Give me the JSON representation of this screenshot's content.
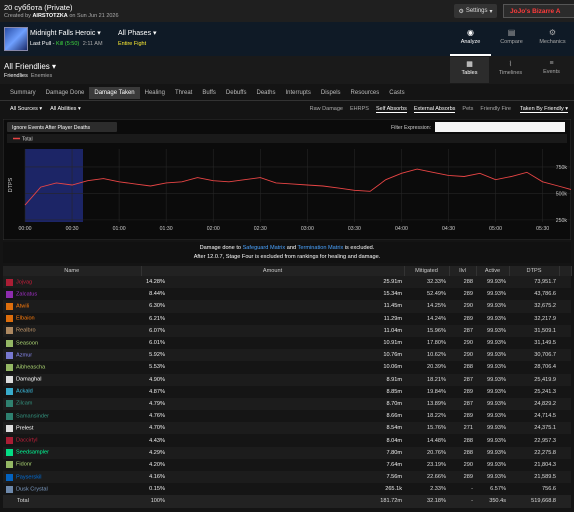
{
  "header": {
    "title": "20 суббота (Private)",
    "created_prefix": "Created by",
    "author": "AIRSTOTZKA",
    "created_suffix": "on Sun Jun 21 2026",
    "settings": "Settings",
    "report_tag": "JoJo's Bizarre A"
  },
  "fight": {
    "name": "Midnight Falls Heroic",
    "pull_prefix": "Last Pull -",
    "pull_result": "Kill (5:50)",
    "pull_time": "2:11 AM",
    "phase": "All Phases",
    "phase_detail": "Entire Fight"
  },
  "view_tabs": [
    "Analyze",
    "Compare",
    "Mechanics"
  ],
  "friendlies": {
    "title": "All Friendlies",
    "options": [
      "Friendlies",
      "Enemies"
    ]
  },
  "display_tabs": [
    "Tables",
    "Timelines",
    "Events"
  ],
  "tabs": [
    "Summary",
    "Damage Done",
    "Damage Taken",
    "Healing",
    "Threat",
    "Buffs",
    "Debuffs",
    "Deaths",
    "Interrupts",
    "Dispels",
    "Resources",
    "Casts"
  ],
  "active_tab": 2,
  "source_filters": [
    "All Sources",
    "All Abilities"
  ],
  "options": [
    "Raw Damage",
    "EHRPS",
    "Self Absorbs",
    "External Absorbs",
    "Pets",
    "Friendly Fire"
  ],
  "taken_by": "Taken By Friendly",
  "graph": {
    "ignore_deaths": "Ignore Events After Player Deaths",
    "filter_label": "Filter Expression:",
    "legend": "Total",
    "y_label": "DTPS",
    "line_color": "#e84545",
    "x": [
      0,
      10,
      20,
      30,
      40,
      50,
      60,
      70,
      80,
      90,
      100,
      110,
      120,
      130,
      140,
      150,
      160,
      170,
      180,
      190,
      200,
      210,
      220,
      230,
      240,
      250,
      260,
      270,
      280,
      290,
      300,
      310,
      320,
      330,
      340,
      350
    ],
    "values": [
      390000,
      560000,
      600000,
      580000,
      620000,
      640000,
      610000,
      590000,
      570000,
      600000,
      610000,
      650000,
      620000,
      610000,
      630000,
      650000,
      600000,
      590000,
      580000,
      570000,
      550000,
      530000,
      520000,
      630000,
      690000,
      730000,
      700000,
      670000,
      660000,
      690000,
      630000,
      660000,
      700000,
      610000,
      570000,
      530000
    ],
    "xlim": [
      0,
      350
    ],
    "ylim": [
      230000,
      920000
    ],
    "xticks": [
      {
        "value": 0,
        "label": "00:00"
      },
      {
        "value": 30,
        "label": "00:30"
      },
      {
        "value": 60,
        "label": "01:00"
      },
      {
        "value": 90,
        "label": "01:30"
      },
      {
        "value": 120,
        "label": "02:00"
      },
      {
        "value": 150,
        "label": "02:30"
      },
      {
        "value": 180,
        "label": "03:00"
      },
      {
        "value": 210,
        "label": "03:30"
      },
      {
        "value": 240,
        "label": "04:00"
      },
      {
        "value": 270,
        "label": "04:30"
      },
      {
        "value": 300,
        "label": "05:00"
      },
      {
        "value": 330,
        "label": "05:30"
      }
    ],
    "yticks": [
      {
        "value": 750000,
        "label": "750k"
      },
      {
        "value": 500000,
        "label": "500k"
      },
      {
        "value": 250000,
        "label": "250k"
      }
    ]
  },
  "notice": {
    "prefix": "Damage done to",
    "target1": "Safeguard Matrix",
    "joiner": "and",
    "target2": "Termination Matrix",
    "suffix": "is excluded.",
    "line2": "After 12.0.7, Stage Four is excluded from rankings for healing and damage."
  },
  "table": {
    "columns": [
      "Name",
      "Amount",
      "Mitigated",
      "Ilvl",
      "Active",
      "DTPS"
    ],
    "rows": [
      {
        "name": "Jojvag",
        "color": "#c41e3a",
        "percent": {
          "value": 14.28,
          "label": "14.28%"
        },
        "amount": "25.91m",
        "mitigated": {
          "value": 32.33,
          "label": "32.33%"
        },
        "ilvl": 288,
        "active": "99.93%",
        "dtps": "73,951.7"
      },
      {
        "name": "Zalcatus",
        "color": "#a330c9",
        "percent": {
          "value": 8.44,
          "label": "8.44%"
        },
        "amount": "15.34m",
        "mitigated": {
          "value": 52.49,
          "label": "52.49%"
        },
        "ilvl": 289,
        "active": "99.93%",
        "dtps": "43,786.6"
      },
      {
        "name": "Atwili",
        "color": "#ff7c0a",
        "percent": {
          "value": 6.3,
          "label": "6.30%"
        },
        "amount": "11.45m",
        "mitigated": {
          "value": 14.25,
          "label": "14.25%"
        },
        "ilvl": 290,
        "active": "99.93%",
        "dtps": "32,675.2"
      },
      {
        "name": "Elbaion",
        "color": "#ff7c0a",
        "percent": {
          "value": 6.21,
          "label": "6.21%"
        },
        "amount": "11.29m",
        "mitigated": {
          "value": 14.24,
          "label": "14.24%"
        },
        "ilvl": 289,
        "active": "99.93%",
        "dtps": "32,217.9"
      },
      {
        "name": "Realbro",
        "color": "#c69b6d",
        "percent": {
          "value": 6.07,
          "label": "6.07%"
        },
        "amount": "11.04m",
        "mitigated": {
          "value": 15.96,
          "label": "15.96%"
        },
        "ilvl": 287,
        "active": "99.93%",
        "dtps": "31,509.1"
      },
      {
        "name": "Seasoon",
        "color": "#aad372",
        "percent": {
          "value": 6.01,
          "label": "6.01%"
        },
        "amount": "10.91m",
        "mitigated": {
          "value": 17.8,
          "label": "17.80%"
        },
        "ilvl": 290,
        "active": "99.93%",
        "dtps": "31,149.5"
      },
      {
        "name": "Azmur",
        "color": "#8788ee",
        "percent": {
          "value": 5.92,
          "label": "5.92%"
        },
        "amount": "10.76m",
        "mitigated": {
          "value": 10.62,
          "label": "10.62%"
        },
        "ilvl": 290,
        "active": "99.93%",
        "dtps": "30,706.7"
      },
      {
        "name": "Aibheascha",
        "color": "#aad372",
        "percent": {
          "value": 5.53,
          "label": "5.53%"
        },
        "amount": "10.06m",
        "mitigated": {
          "value": 20.39,
          "label": "20.39%"
        },
        "ilvl": 288,
        "active": "99.93%",
        "dtps": "28,706.4"
      },
      {
        "name": "Damaghal",
        "color": "#ffffff",
        "percent": {
          "value": 4.9,
          "label": "4.90%"
        },
        "amount": "8.91m",
        "mitigated": {
          "value": 18.21,
          "label": "18.21%"
        },
        "ilvl": 287,
        "active": "99.93%",
        "dtps": "25,419.9"
      },
      {
        "name": "Ackald",
        "color": "#3fc7eb",
        "percent": {
          "value": 4.87,
          "label": "4.87%"
        },
        "amount": "8.85m",
        "mitigated": {
          "value": 19.84,
          "label": "19.84%"
        },
        "ilvl": 289,
        "active": "99.93%",
        "dtps": "25,241.3"
      },
      {
        "name": "Zilcam",
        "color": "#33937f",
        "percent": {
          "value": 4.79,
          "label": "4.79%"
        },
        "amount": "8.70m",
        "mitigated": {
          "value": 13.89,
          "label": "13.89%"
        },
        "ilvl": 287,
        "active": "99.93%",
        "dtps": "24,829.2"
      },
      {
        "name": "Samansinder",
        "color": "#33937f",
        "percent": {
          "value": 4.76,
          "label": "4.76%"
        },
        "amount": "8.66m",
        "mitigated": {
          "value": 18.22,
          "label": "18.22%"
        },
        "ilvl": 289,
        "active": "99.93%",
        "dtps": "24,714.5"
      },
      {
        "name": "Prelest",
        "color": "#ffffff",
        "percent": {
          "value": 4.7,
          "label": "4.70%"
        },
        "amount": "8.54m",
        "mitigated": {
          "value": 15.76,
          "label": "15.76%"
        },
        "ilvl": 271,
        "active": "99.93%",
        "dtps": "24,375.1"
      },
      {
        "name": "Daccirtyl",
        "color": "#c41e3a",
        "percent": {
          "value": 4.43,
          "label": "4.43%"
        },
        "amount": "8.04m",
        "mitigated": {
          "value": 14.48,
          "label": "14.48%"
        },
        "ilvl": 288,
        "active": "99.93%",
        "dtps": "22,957.3"
      },
      {
        "name": "Seedsampler",
        "color": "#00ff98",
        "percent": {
          "value": 4.29,
          "label": "4.29%"
        },
        "amount": "7.80m",
        "mitigated": {
          "value": 20.76,
          "label": "20.76%"
        },
        "ilvl": 288,
        "active": "99.93%",
        "dtps": "22,275.8"
      },
      {
        "name": "Fidonr",
        "color": "#aad372",
        "percent": {
          "value": 4.2,
          "label": "4.20%"
        },
        "amount": "7.64m",
        "mitigated": {
          "value": 23.19,
          "label": "23.19%"
        },
        "ilvl": 290,
        "active": "99.93%",
        "dtps": "21,804.3"
      },
      {
        "name": "Payserskil",
        "color": "#0070dd",
        "percent": {
          "value": 4.16,
          "label": "4.16%"
        },
        "amount": "7.56m",
        "mitigated": {
          "value": 22.66,
          "label": "22.66%"
        },
        "ilvl": 289,
        "active": "99.93%",
        "dtps": "21,589.5"
      },
      {
        "name": "Dusk Crystal",
        "color": "#7d9cc4",
        "percent": {
          "value": 0.15,
          "label": "0.15%"
        },
        "amount": "265.1k",
        "mitigated": {
          "value": 2.33,
          "label": "2.33%"
        },
        "ilvl": "-",
        "active": "6.57%",
        "dtps": "756.6"
      }
    ],
    "total": {
      "name": "Total",
      "percent": "100%",
      "amount": "181.72m",
      "mitigated": "32.18%",
      "ilvl": "-",
      "active": "350.4s",
      "dtps": "519,668.8"
    }
  }
}
